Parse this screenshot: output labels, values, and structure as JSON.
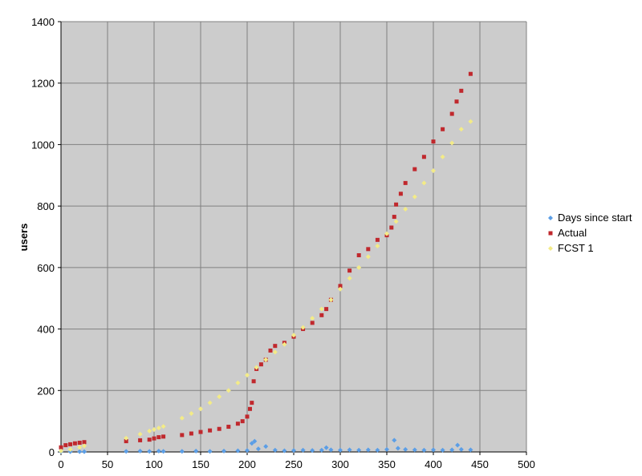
{
  "colors": {
    "plot_background": "#cccccc",
    "gridline": "#808080",
    "axis": "#000000"
  },
  "chart_data": {
    "type": "scatter",
    "title": "",
    "xlabel": "",
    "ylabel": "users",
    "xlim": [
      0,
      500
    ],
    "ylim": [
      0,
      1400
    ],
    "xticks": [
      0,
      50,
      100,
      150,
      200,
      250,
      300,
      350,
      400,
      450,
      500
    ],
    "yticks": [
      0,
      200,
      400,
      600,
      800,
      1000,
      1200,
      1400
    ],
    "grid": true,
    "legend_position": "right",
    "series": [
      {
        "name": "Days since start",
        "color": "#5b9ee6",
        "marker": "diamond",
        "x": [
          0,
          10,
          20,
          25,
          70,
          85,
          95,
          105,
          110,
          130,
          145,
          160,
          175,
          190,
          200,
          205,
          208,
          212,
          220,
          230,
          240,
          250,
          260,
          270,
          280,
          285,
          290,
          300,
          310,
          320,
          330,
          340,
          350,
          358,
          362,
          370,
          380,
          390,
          400,
          410,
          420,
          426,
          430,
          440
        ],
        "y": [
          1,
          1,
          1,
          1,
          2,
          3,
          2,
          3,
          2,
          2,
          3,
          2,
          3,
          4,
          5,
          28,
          35,
          10,
          18,
          6,
          4,
          5,
          6,
          5,
          6,
          14,
          7,
          6,
          7,
          6,
          7,
          6,
          8,
          38,
          12,
          8,
          7,
          6,
          7,
          6,
          7,
          22,
          8,
          7
        ]
      },
      {
        "name": "Actual",
        "color": "#c0282d",
        "marker": "square",
        "x": [
          0,
          5,
          10,
          15,
          20,
          25,
          70,
          85,
          95,
          100,
          105,
          110,
          130,
          140,
          150,
          160,
          170,
          180,
          190,
          195,
          200,
          203,
          205,
          207,
          210,
          215,
          220,
          225,
          230,
          240,
          250,
          260,
          270,
          280,
          285,
          290,
          300,
          310,
          320,
          330,
          340,
          350,
          355,
          358,
          360,
          365,
          370,
          380,
          390,
          400,
          410,
          420,
          425,
          430,
          440
        ],
        "y": [
          15,
          22,
          25,
          28,
          30,
          32,
          35,
          38,
          40,
          44,
          48,
          50,
          55,
          60,
          65,
          70,
          75,
          82,
          92,
          100,
          115,
          140,
          160,
          230,
          270,
          285,
          300,
          330,
          345,
          355,
          375,
          400,
          420,
          445,
          465,
          495,
          540,
          590,
          640,
          660,
          690,
          705,
          730,
          765,
          805,
          840,
          875,
          920,
          960,
          1010,
          1050,
          1100,
          1140,
          1175,
          1230
        ]
      },
      {
        "name": "FCST 1",
        "color": "#f3eb87",
        "marker": "diamond",
        "x": [
          0,
          10,
          20,
          25,
          70,
          85,
          95,
          100,
          105,
          110,
          130,
          140,
          150,
          160,
          170,
          180,
          190,
          200,
          210,
          220,
          230,
          240,
          250,
          260,
          270,
          280,
          290,
          300,
          310,
          320,
          330,
          340,
          350,
          360,
          370,
          380,
          390,
          400,
          410,
          420,
          430,
          440
        ],
        "y": [
          3,
          8,
          15,
          20,
          45,
          58,
          68,
          73,
          78,
          83,
          110,
          125,
          140,
          160,
          180,
          200,
          225,
          250,
          275,
          300,
          325,
          350,
          380,
          405,
          435,
          465,
          495,
          530,
          565,
          600,
          635,
          670,
          710,
          750,
          790,
          830,
          875,
          915,
          960,
          1005,
          1050,
          1075
        ]
      }
    ]
  }
}
